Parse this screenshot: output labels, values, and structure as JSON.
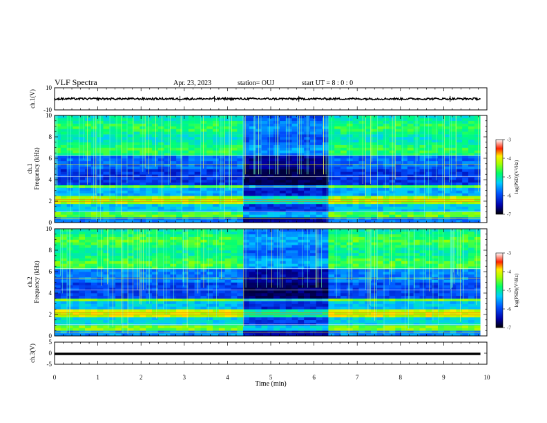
{
  "header": {
    "title": "VLF Spectra",
    "date": "Apr. 23, 2023",
    "station": "station= OUJ",
    "start": "start  UT =   8 : 0  : 0"
  },
  "chart_data": [
    {
      "type": "line",
      "name": "ch1-waveform",
      "ylabel": "ch.1(V)",
      "ylim": [
        -10,
        10
      ],
      "y_ticks": [
        "10",
        "-10"
      ],
      "xlim": [
        0,
        10
      ],
      "x": [
        0,
        1,
        2,
        3,
        4,
        5,
        6,
        7,
        8,
        9,
        9.85
      ],
      "y": [
        0,
        0,
        0,
        0,
        0,
        0,
        0,
        0,
        0,
        0,
        0
      ]
    },
    {
      "type": "heatmap",
      "name": "ch1-spectrogram",
      "ylabel": "ch.1\nFrequency (kHz)",
      "ylim": [
        0,
        10
      ],
      "y_ticks": [
        "0",
        "2",
        "4",
        "6",
        "8",
        "10"
      ],
      "xlim": [
        0,
        10
      ],
      "data_end_min": 9.85,
      "quiet_interval_min": [
        4.4,
        6.3
      ],
      "colorbar": {
        "label": "log(PSD)(V²/Hz)",
        "ticks": [
          "-3",
          "-4",
          "-5",
          "-6",
          "-7"
        ],
        "range": [
          -7,
          -3
        ]
      }
    },
    {
      "type": "heatmap",
      "name": "ch2-spectrogram",
      "ylabel": "ch.2\nFrequency (kHz)",
      "ylim": [
        0,
        10
      ],
      "y_ticks": [
        "0",
        "2",
        "4",
        "6",
        "8",
        "10"
      ],
      "xlim": [
        0,
        10
      ],
      "data_end_min": 9.85,
      "quiet_interval_min": [
        4.4,
        6.3
      ],
      "colorbar": {
        "label": "log(PSD)(V²/Hz)",
        "ticks": [
          "-3",
          "-4",
          "-5",
          "-6",
          "-7"
        ],
        "range": [
          -7,
          -3
        ]
      }
    },
    {
      "type": "line",
      "name": "ch3-waveform",
      "ylabel": "ch.3(V)",
      "ylim": [
        -5,
        5
      ],
      "y_ticks": [
        "5",
        "0",
        "-5"
      ],
      "xlim": [
        0,
        10
      ],
      "x": [
        0,
        9.85
      ],
      "y": [
        -0.3,
        -0.3
      ]
    }
  ],
  "x_axis": {
    "label": "Time (min)",
    "ticks": [
      "0",
      "1",
      "2",
      "3",
      "4",
      "5",
      "6",
      "7",
      "8",
      "9",
      "10"
    ]
  },
  "colors": {
    "ink": "#000000",
    "colormap": [
      "#000088",
      "#0000ff",
      "#00a8ff",
      "#00ffcc",
      "#55ff00",
      "#ffff00",
      "#ff8800",
      "#ff0000",
      "#ffffff"
    ]
  }
}
